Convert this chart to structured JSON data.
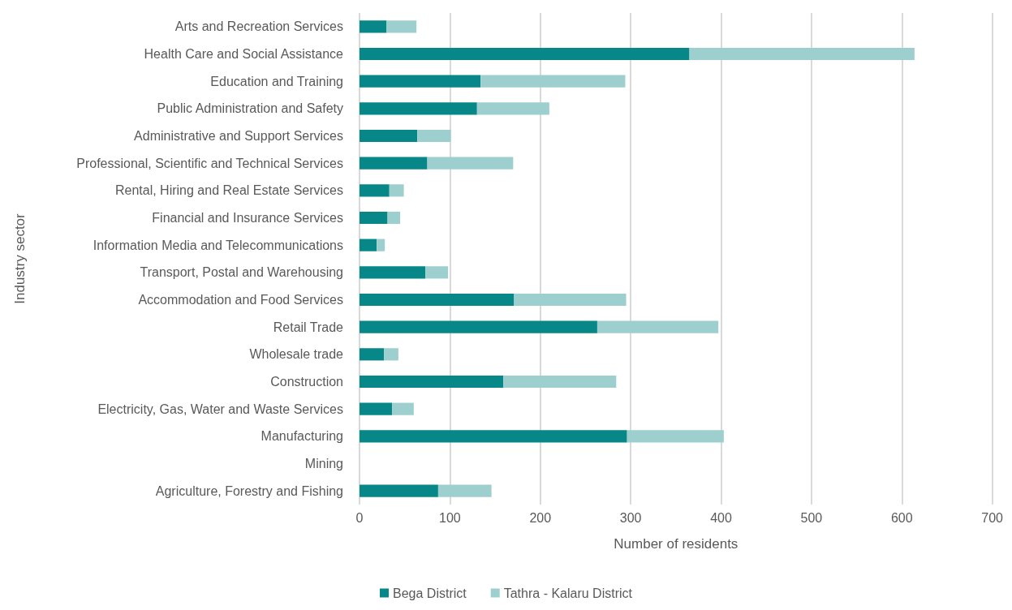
{
  "chart_data": {
    "type": "bar",
    "orientation": "horizontal",
    "stacked": true,
    "xlabel": "Number of residents",
    "ylabel": "Industry sector",
    "categories": [
      "Arts and Recreation Services",
      "Health Care and Social Assistance",
      "Education and Training",
      "Public Administration and Safety",
      "Administrative and Support Services",
      "Professional, Scientific and Technical Services",
      "Rental, Hiring and Real Estate Services",
      "Financial and Insurance Services",
      "Information Media and Telecommunications",
      "Transport, Postal and Warehousing",
      "Accommodation and Food Services",
      "Retail Trade",
      "Wholesale trade",
      "Construction",
      "Electricity, Gas, Water and Waste Services",
      "Manufacturing",
      "Mining",
      "Agriculture, Forestry and Fishing"
    ],
    "series": [
      {
        "name": "Bega District",
        "color": "#078787",
        "values": [
          30,
          365,
          134,
          130,
          64,
          75,
          33,
          31,
          19,
          73,
          171,
          263,
          27,
          159,
          36,
          296,
          0,
          87
        ]
      },
      {
        "name": "Tathra - Kalaru District",
        "color": "#9ecfcf",
        "values": [
          33,
          249,
          160,
          80,
          37,
          95,
          16,
          14,
          9,
          25,
          124,
          134,
          16,
          125,
          24,
          107,
          0,
          59
        ]
      }
    ],
    "xlim": [
      0,
      700
    ],
    "xticks": [
      0,
      100,
      200,
      300,
      400,
      500,
      600,
      700
    ],
    "grid": "x",
    "legend": "bottom"
  }
}
